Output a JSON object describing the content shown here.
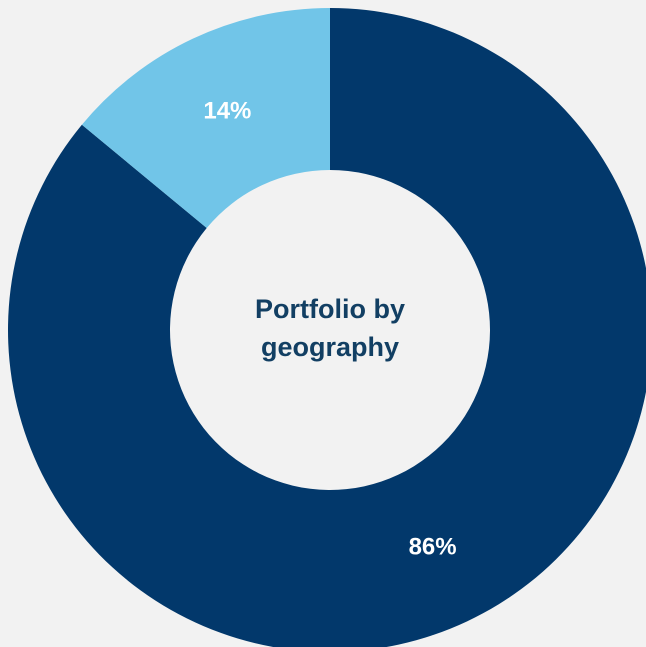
{
  "chart_data": {
    "type": "donut",
    "title": "Portfolio by geography",
    "values": [
      86,
      14
    ],
    "value_labels": [
      "86%",
      "14%"
    ],
    "colors": [
      "#02386b",
      "#71c5e8"
    ]
  }
}
